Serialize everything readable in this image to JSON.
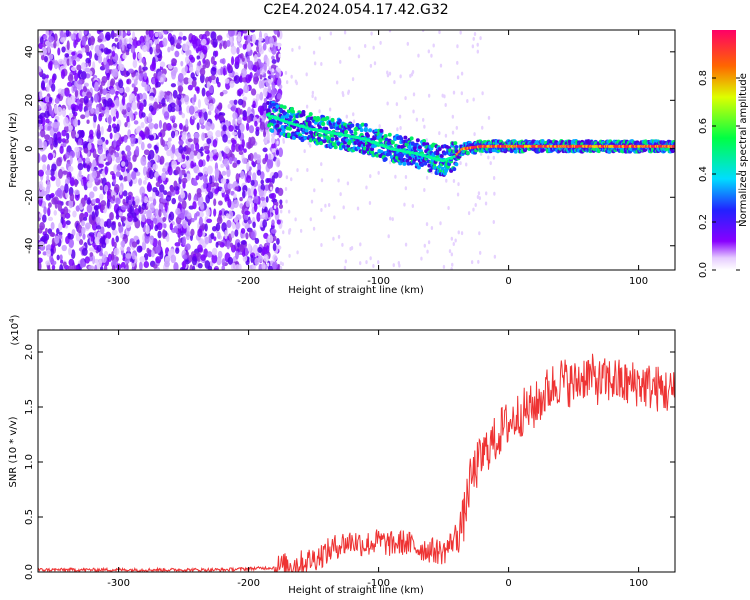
{
  "title": "C2E4.2024.054.17.42.G32",
  "chart_data": [
    {
      "type": "heatmap",
      "xlabel": "Height of straight line (km)",
      "ylabel": "Frequency (Hz)",
      "xlim": [
        -362,
        128
      ],
      "ylim": [
        -50,
        49
      ],
      "xticks": [
        -300,
        -200,
        -100,
        0,
        100
      ],
      "yticks": [
        -40,
        -20,
        0,
        20,
        40
      ],
      "colorbar": {
        "label": "Normalized spectral amplitude",
        "range": [
          0,
          1
        ],
        "ticks": [
          0.0,
          0.2,
          0.4,
          0.6,
          0.8
        ],
        "tick_labels": [
          "0.0",
          "0.2",
          "0.4",
          "0.6",
          "0.8"
        ]
      },
      "ridge_centerline": [
        {
          "x": -185,
          "y": 14
        },
        {
          "x": -170,
          "y": 11
        },
        {
          "x": -150,
          "y": 8
        },
        {
          "x": -130,
          "y": 6
        },
        {
          "x": -110,
          "y": 4
        },
        {
          "x": -90,
          "y": 0
        },
        {
          "x": -70,
          "y": -2
        },
        {
          "x": -50,
          "y": -5
        },
        {
          "x": -40,
          "y": -3
        },
        {
          "x": -35,
          "y": 0
        },
        {
          "x": -20,
          "y": 1
        },
        {
          "x": 0,
          "y": 1
        },
        {
          "x": 50,
          "y": 1
        },
        {
          "x": 100,
          "y": 1
        },
        {
          "x": 128,
          "y": 1
        }
      ],
      "grid": false
    },
    {
      "type": "line",
      "xlabel": "Height of straight line (km)",
      "ylabel": "SNR (10 * v/v)",
      "yscale_label": "(x10",
      "yscale_exponent": "4",
      "yscale_suffix": ")",
      "xlim": [
        -362,
        128
      ],
      "ylim": [
        0,
        2.2
      ],
      "xticks": [
        -300,
        -200,
        -100,
        0,
        100
      ],
      "yticks": [
        0.0,
        0.5,
        1.0,
        1.5,
        2.0
      ],
      "ytick_labels": [
        "0.0",
        "0.5",
        "1.0",
        "1.5",
        "2.0"
      ],
      "series": [
        {
          "color": "#ee3333",
          "x": [
            -362,
            -340,
            -320,
            -300,
            -280,
            -260,
            -240,
            -220,
            -200,
            -180,
            -170,
            -160,
            -150,
            -140,
            -130,
            -120,
            -110,
            -100,
            -90,
            -80,
            -70,
            -60,
            -50,
            -45,
            -40,
            -35,
            -30,
            -25,
            -20,
            -15,
            -10,
            -5,
            0,
            10,
            20,
            30,
            40,
            50,
            60,
            70,
            80,
            90,
            100,
            110,
            120,
            128
          ],
          "y": [
            0.02,
            0.02,
            0.02,
            0.02,
            0.02,
            0.02,
            0.02,
            0.02,
            0.03,
            0.04,
            0.06,
            0.08,
            0.12,
            0.18,
            0.25,
            0.28,
            0.25,
            0.28,
            0.25,
            0.27,
            0.22,
            0.2,
            0.18,
            0.25,
            0.35,
            0.45,
            0.8,
            0.95,
            1.05,
            1.15,
            1.2,
            1.3,
            1.35,
            1.45,
            1.5,
            1.65,
            1.75,
            1.7,
            1.8,
            1.72,
            1.75,
            1.7,
            1.72,
            1.68,
            1.65,
            1.62
          ]
        }
      ],
      "grid": false
    }
  ]
}
